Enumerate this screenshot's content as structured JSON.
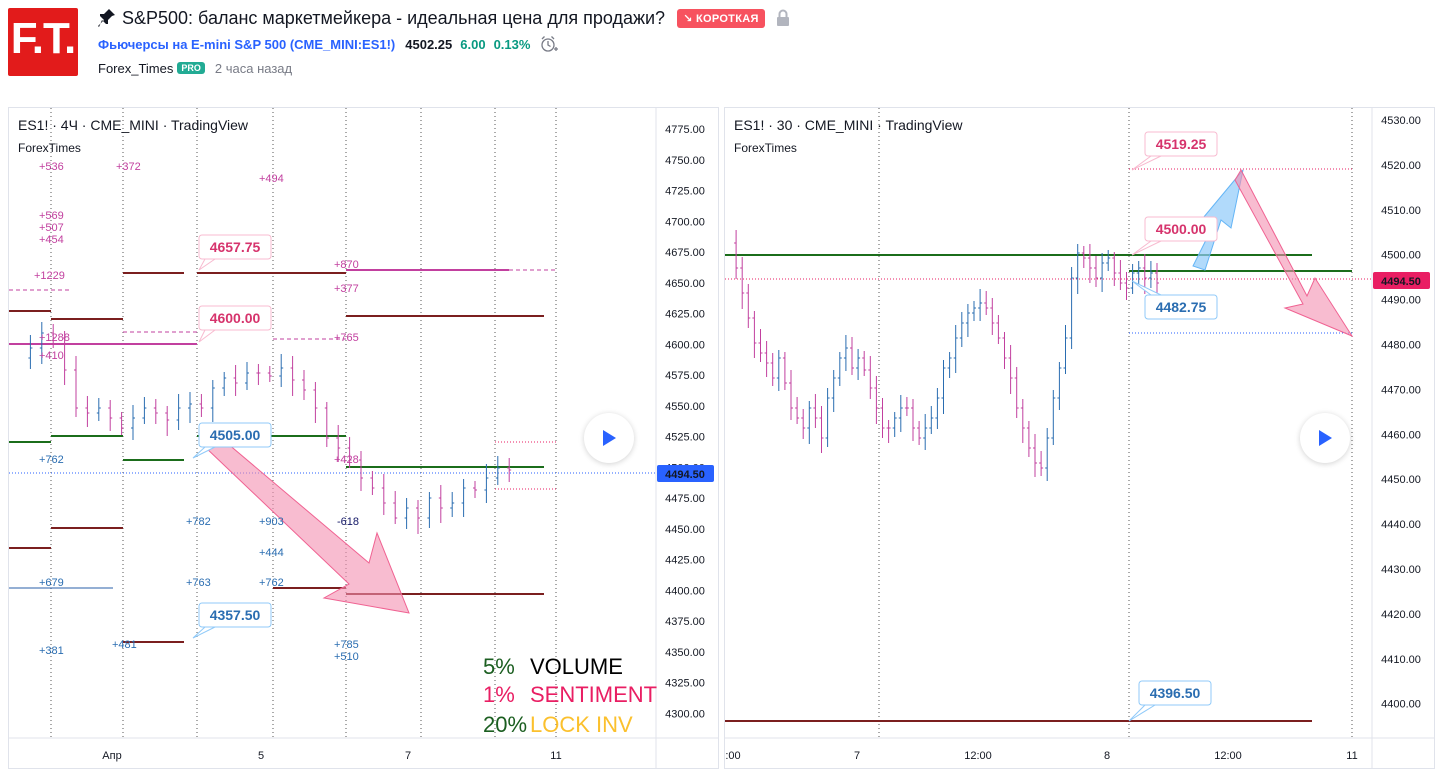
{
  "header": {
    "logo_text": "F.T.",
    "title": "S&P500: баланс маркетмейкера - идеальная цена для продажи?",
    "badge": "↘ КОРОТКАЯ",
    "symbol_name": "Фьючерсы на E-mini S&P 500",
    "symbol_code": "(CME_MINI:ES1!)",
    "price": "4502.25",
    "change": "6.00",
    "change_pct": "0.13%",
    "author": "Forex_Times",
    "pro": "PRO",
    "time_ago": "2 часа назад",
    "colors": {
      "badge": "#f7525f",
      "symbol": "#2962ff",
      "positive": "#089981"
    }
  },
  "left_chart": {
    "title": "ES1! · 4Ч · CME_MINI · TradingView",
    "subtitle": "ForexTimes",
    "current_price": "4494.50",
    "y_ticks": [
      "4775.00",
      "4750.00",
      "4725.00",
      "4700.00",
      "4675.00",
      "4650.00",
      "4625.00",
      "4600.00",
      "4575.00",
      "4550.00",
      "4525.00",
      "4500.00",
      "4475.00",
      "4450.00",
      "4425.00",
      "4400.00",
      "4375.00",
      "4350.00",
      "4325.00",
      "4300.00"
    ],
    "x_ticks": [
      "Апр",
      "5",
      "7",
      "11"
    ],
    "tags": {
      "t1": "4657.75",
      "t2": "4600.00",
      "t3": "4505.00",
      "t4": "4357.50"
    },
    "annotations": {
      "a1": "+536",
      "a2": "+372",
      "a3": "+494",
      "a4": "+569",
      "a5": "+507",
      "a6": "+454",
      "a7": "+1229",
      "a8": "+870",
      "a9": "+377",
      "a10": "+765",
      "a11": "+1288",
      "a12": "+410",
      "a13": "+762",
      "a14": "+428",
      "a15": "+782",
      "a16": "+903",
      "a17": "-618",
      "a18": "+444",
      "a19": "+679",
      "a20": "+763",
      "a21": "+762",
      "a22": "+381",
      "a23": "+481",
      "a24": "+785",
      "a25": "+510"
    },
    "legend": [
      {
        "pct": "5%",
        "label": "VOLUME",
        "pct_color": "#1b5e20",
        "label_color": "#000000"
      },
      {
        "pct": "1%",
        "label": "SENTIMENT",
        "pct_color": "#e91e63",
        "label_color": "#e91e63"
      },
      {
        "pct": "20%",
        "label": "LOCK INV",
        "pct_color": "#1b5e20",
        "label_color": "#fbc02d"
      }
    ]
  },
  "right_chart": {
    "title": "ES1! · 30 · CME_MINI · TradingView",
    "subtitle": "ForexTimes",
    "current_price": "4494.50",
    "y_ticks": [
      "4530.00",
      "4520.00",
      "4510.00",
      "4500.00",
      "4490.00",
      "4480.00",
      "4470.00",
      "4460.00",
      "4450.00",
      "4440.00",
      "4430.00",
      "4420.00",
      "4410.00",
      "4400.00"
    ],
    "x_ticks": [
      ":00",
      "7",
      "12:00",
      "8",
      "12:00",
      "11"
    ],
    "tags": {
      "t1": "4519.25",
      "t2": "4500.00",
      "t3": "4482.75",
      "t4": "4396.50"
    }
  },
  "icons": {
    "pin": "pin-icon",
    "lock": "lock-icon",
    "alarm": "alarm-icon",
    "play": "play-icon"
  }
}
